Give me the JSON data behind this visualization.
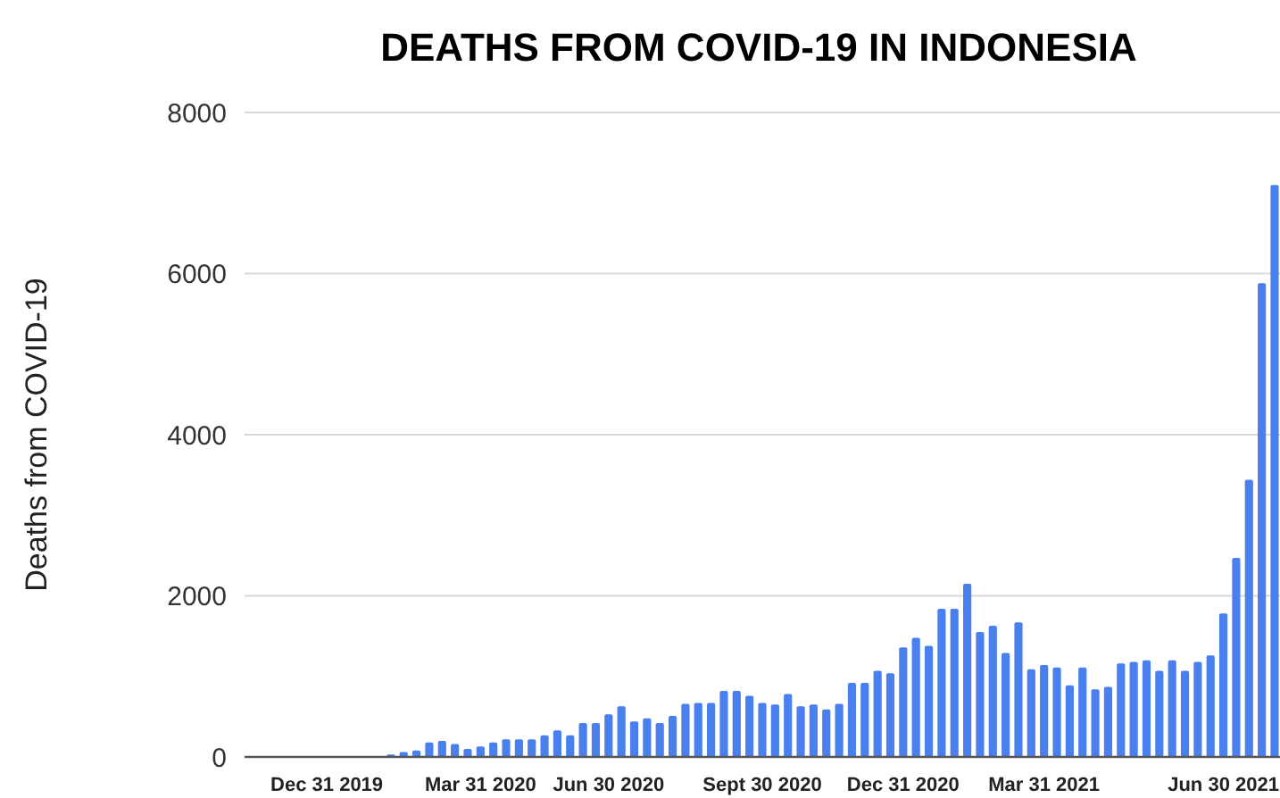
{
  "chart_data": {
    "type": "bar",
    "title": "DEATHS FROM COVID-19 IN INDONESIA",
    "ylabel": "Deaths from COVID-19",
    "categories": [
      null,
      null,
      null,
      null,
      null,
      null,
      "Dec 31 2019",
      null,
      null,
      null,
      null,
      null,
      null,
      null,
      null,
      null,
      null,
      null,
      "Mar 31 2020",
      null,
      null,
      null,
      null,
      null,
      null,
      null,
      null,
      null,
      "Jun 30 2020",
      null,
      null,
      null,
      null,
      null,
      null,
      null,
      null,
      null,
      null,
      null,
      "Sept 30 2020",
      null,
      null,
      null,
      null,
      null,
      null,
      null,
      null,
      null,
      null,
      "Dec 31 2020",
      null,
      null,
      null,
      null,
      null,
      null,
      null,
      null,
      null,
      null,
      "Mar 31 2021",
      null,
      null,
      null,
      null,
      null,
      null,
      null,
      null,
      null,
      null,
      null,
      null,
      null,
      "Jun 30 2021",
      null,
      null,
      null,
      null
    ],
    "values": [
      0,
      0,
      0,
      0,
      0,
      0,
      0,
      0,
      0,
      0,
      0,
      30,
      60,
      80,
      180,
      200,
      160,
      100,
      130,
      180,
      220,
      220,
      220,
      270,
      330,
      270,
      420,
      420,
      530,
      630,
      440,
      480,
      420,
      510,
      660,
      670,
      670,
      820,
      820,
      760,
      670,
      650,
      780,
      630,
      650,
      590,
      660,
      920,
      920,
      1070,
      1040,
      1360,
      1480,
      1380,
      1840,
      1840,
      2150,
      1550,
      1630,
      1290,
      1670,
      1090,
      1140,
      1110,
      890,
      1110,
      840,
      870,
      1160,
      1180,
      1200,
      1070,
      1200,
      1070,
      1180,
      1260,
      1780,
      2470,
      3440,
      5880,
      7100
    ],
    "color": "#4a80ee",
    "ylim": [
      0,
      8000
    ],
    "yticks": [
      0,
      2000,
      4000,
      6000,
      8000
    ],
    "grid": "y"
  }
}
